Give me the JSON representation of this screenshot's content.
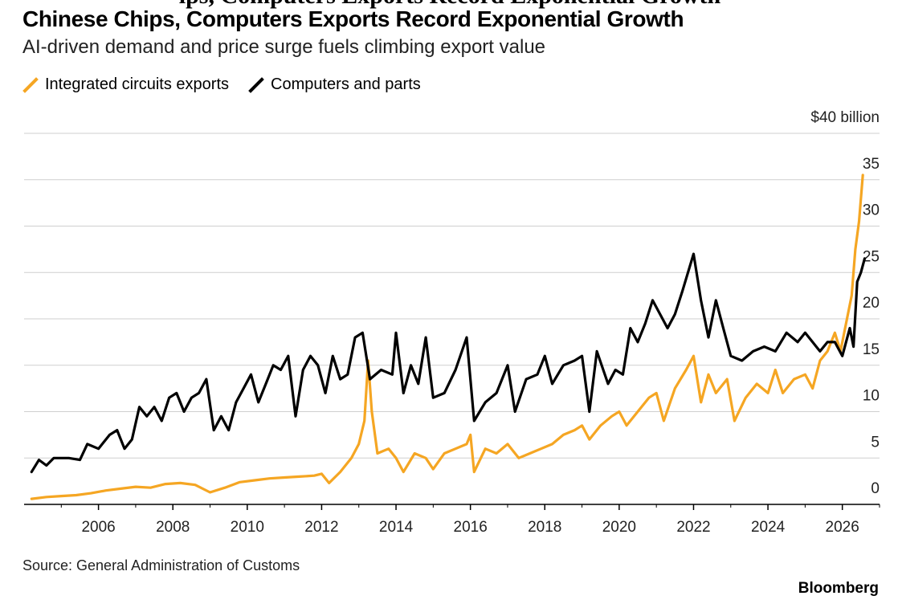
{
  "header": {
    "overlay": "ips, Computers Exports Record Exponential Growth",
    "title": "Chinese Chips, Computers Exports Record Exponential Growth",
    "subtitle": "AI-driven demand and price surge fuels climbing export value"
  },
  "footer": {
    "source": "Source: General Administration of Customs",
    "brand": "Bloomberg"
  },
  "chart_data": {
    "type": "line",
    "title": "Chinese Chips, Computers Exports Record Exponential Growth",
    "subtitle": "AI-driven demand and price surge fuels climbing export value",
    "y_unit_label": "$40 billion",
    "ylim": [
      0,
      40
    ],
    "y_ticks": [
      0,
      5,
      10,
      15,
      20,
      25,
      30,
      35,
      40
    ],
    "y_tick_labels": [
      "0",
      "5",
      "10",
      "15",
      "20",
      "25",
      "30",
      "35",
      "$40 billion"
    ],
    "xlim": [
      2004.0,
      2027.0
    ],
    "x_ticks": [
      2006,
      2008,
      2010,
      2012,
      2014,
      2016,
      2018,
      2020,
      2022,
      2024,
      2026
    ],
    "x_tick_labels": [
      "2006",
      "2008",
      "2010",
      "2012",
      "2014",
      "2016",
      "2018",
      "2020",
      "2022",
      "2024",
      "2026"
    ],
    "grid": "horizontal",
    "legend_position": "top-left",
    "series": [
      {
        "name": "Integrated circuits exports",
        "color": "#F5A623",
        "points": [
          [
            2004.2,
            0.6
          ],
          [
            2004.6,
            0.8
          ],
          [
            2005.0,
            0.9
          ],
          [
            2005.4,
            1.0
          ],
          [
            2005.8,
            1.2
          ],
          [
            2006.2,
            1.5
          ],
          [
            2006.6,
            1.7
          ],
          [
            2007.0,
            1.9
          ],
          [
            2007.4,
            1.8
          ],
          [
            2007.8,
            2.2
          ],
          [
            2008.2,
            2.3
          ],
          [
            2008.6,
            2.1
          ],
          [
            2009.0,
            1.3
          ],
          [
            2009.4,
            1.8
          ],
          [
            2009.8,
            2.4
          ],
          [
            2010.2,
            2.6
          ],
          [
            2010.6,
            2.8
          ],
          [
            2011.0,
            2.9
          ],
          [
            2011.4,
            3.0
          ],
          [
            2011.8,
            3.1
          ],
          [
            2012.0,
            3.3
          ],
          [
            2012.2,
            2.3
          ],
          [
            2012.5,
            3.5
          ],
          [
            2012.8,
            5.0
          ],
          [
            2013.0,
            6.5
          ],
          [
            2013.15,
            9.0
          ],
          [
            2013.25,
            15.5
          ],
          [
            2013.35,
            10.0
          ],
          [
            2013.5,
            5.5
          ],
          [
            2013.8,
            6.0
          ],
          [
            2014.0,
            5.0
          ],
          [
            2014.2,
            3.5
          ],
          [
            2014.5,
            5.5
          ],
          [
            2014.8,
            5.0
          ],
          [
            2015.0,
            3.8
          ],
          [
            2015.3,
            5.5
          ],
          [
            2015.6,
            6.0
          ],
          [
            2015.9,
            6.5
          ],
          [
            2016.0,
            7.5
          ],
          [
            2016.1,
            3.5
          ],
          [
            2016.4,
            6.0
          ],
          [
            2016.7,
            5.5
          ],
          [
            2017.0,
            6.5
          ],
          [
            2017.3,
            5.0
          ],
          [
            2017.6,
            5.5
          ],
          [
            2017.9,
            6.0
          ],
          [
            2018.2,
            6.5
          ],
          [
            2018.5,
            7.5
          ],
          [
            2018.8,
            8.0
          ],
          [
            2019.0,
            8.5
          ],
          [
            2019.2,
            7.0
          ],
          [
            2019.5,
            8.5
          ],
          [
            2019.8,
            9.5
          ],
          [
            2020.0,
            10.0
          ],
          [
            2020.2,
            8.5
          ],
          [
            2020.5,
            10.0
          ],
          [
            2020.8,
            11.5
          ],
          [
            2021.0,
            12.0
          ],
          [
            2021.2,
            9.0
          ],
          [
            2021.5,
            12.5
          ],
          [
            2021.8,
            14.5
          ],
          [
            2022.0,
            16.0
          ],
          [
            2022.2,
            11.0
          ],
          [
            2022.4,
            14.0
          ],
          [
            2022.6,
            12.0
          ],
          [
            2022.9,
            13.5
          ],
          [
            2023.1,
            9.0
          ],
          [
            2023.4,
            11.5
          ],
          [
            2023.7,
            13.0
          ],
          [
            2024.0,
            12.0
          ],
          [
            2024.2,
            14.5
          ],
          [
            2024.4,
            12.0
          ],
          [
            2024.7,
            13.5
          ],
          [
            2025.0,
            14.0
          ],
          [
            2025.2,
            12.5
          ],
          [
            2025.4,
            15.5
          ],
          [
            2025.6,
            16.5
          ],
          [
            2025.8,
            18.5
          ],
          [
            2025.95,
            16.5
          ],
          [
            2026.1,
            19.5
          ],
          [
            2026.25,
            22.5
          ],
          [
            2026.35,
            27.5
          ],
          [
            2026.45,
            30.5
          ],
          [
            2026.55,
            35.5
          ]
        ]
      },
      {
        "name": "Computers and parts",
        "color": "#000000",
        "points": [
          [
            2004.2,
            3.5
          ],
          [
            2004.4,
            4.8
          ],
          [
            2004.6,
            4.2
          ],
          [
            2004.8,
            5.0
          ],
          [
            2005.2,
            5.0
          ],
          [
            2005.5,
            4.8
          ],
          [
            2005.7,
            6.5
          ],
          [
            2006.0,
            6.0
          ],
          [
            2006.3,
            7.5
          ],
          [
            2006.5,
            8.0
          ],
          [
            2006.7,
            6.0
          ],
          [
            2006.9,
            7.0
          ],
          [
            2007.1,
            10.5
          ],
          [
            2007.3,
            9.5
          ],
          [
            2007.5,
            10.5
          ],
          [
            2007.7,
            9.0
          ],
          [
            2007.9,
            11.5
          ],
          [
            2008.1,
            12.0
          ],
          [
            2008.3,
            10.0
          ],
          [
            2008.5,
            11.5
          ],
          [
            2008.7,
            12.0
          ],
          [
            2008.9,
            13.5
          ],
          [
            2009.1,
            8.0
          ],
          [
            2009.3,
            9.5
          ],
          [
            2009.5,
            8.0
          ],
          [
            2009.7,
            11.0
          ],
          [
            2009.9,
            12.5
          ],
          [
            2010.1,
            14.0
          ],
          [
            2010.3,
            11.0
          ],
          [
            2010.5,
            13.0
          ],
          [
            2010.7,
            15.0
          ],
          [
            2010.9,
            14.5
          ],
          [
            2011.1,
            16.0
          ],
          [
            2011.3,
            9.5
          ],
          [
            2011.5,
            14.5
          ],
          [
            2011.7,
            16.0
          ],
          [
            2011.9,
            15.0
          ],
          [
            2012.1,
            12.0
          ],
          [
            2012.3,
            16.0
          ],
          [
            2012.5,
            13.5
          ],
          [
            2012.7,
            14.0
          ],
          [
            2012.9,
            18.0
          ],
          [
            2013.1,
            18.5
          ],
          [
            2013.3,
            13.5
          ],
          [
            2013.6,
            14.5
          ],
          [
            2013.9,
            14.0
          ],
          [
            2014.0,
            18.5
          ],
          [
            2014.2,
            12.0
          ],
          [
            2014.4,
            15.0
          ],
          [
            2014.6,
            13.0
          ],
          [
            2014.8,
            18.0
          ],
          [
            2015.0,
            11.5
          ],
          [
            2015.3,
            12.0
          ],
          [
            2015.6,
            14.5
          ],
          [
            2015.9,
            18.0
          ],
          [
            2016.1,
            9.0
          ],
          [
            2016.4,
            11.0
          ],
          [
            2016.7,
            12.0
          ],
          [
            2017.0,
            15.0
          ],
          [
            2017.2,
            10.0
          ],
          [
            2017.5,
            13.5
          ],
          [
            2017.8,
            14.0
          ],
          [
            2018.0,
            16.0
          ],
          [
            2018.2,
            13.0
          ],
          [
            2018.5,
            15.0
          ],
          [
            2018.8,
            15.5
          ],
          [
            2019.0,
            16.0
          ],
          [
            2019.2,
            10.0
          ],
          [
            2019.4,
            16.5
          ],
          [
            2019.7,
            13.0
          ],
          [
            2019.9,
            14.5
          ],
          [
            2020.1,
            14.0
          ],
          [
            2020.3,
            19.0
          ],
          [
            2020.5,
            17.5
          ],
          [
            2020.7,
            19.5
          ],
          [
            2020.9,
            22.0
          ],
          [
            2021.1,
            20.5
          ],
          [
            2021.3,
            19.0
          ],
          [
            2021.5,
            20.5
          ],
          [
            2021.7,
            23.0
          ],
          [
            2022.0,
            27.0
          ],
          [
            2022.2,
            22.0
          ],
          [
            2022.4,
            18.0
          ],
          [
            2022.6,
            22.0
          ],
          [
            2022.8,
            19.0
          ],
          [
            2023.0,
            16.0
          ],
          [
            2023.3,
            15.5
          ],
          [
            2023.6,
            16.5
          ],
          [
            2023.9,
            17.0
          ],
          [
            2024.2,
            16.5
          ],
          [
            2024.5,
            18.5
          ],
          [
            2024.8,
            17.5
          ],
          [
            2025.0,
            18.5
          ],
          [
            2025.2,
            17.5
          ],
          [
            2025.4,
            16.5
          ],
          [
            2025.6,
            17.5
          ],
          [
            2025.8,
            17.5
          ],
          [
            2026.0,
            16.0
          ],
          [
            2026.2,
            19.0
          ],
          [
            2026.3,
            17.0
          ],
          [
            2026.4,
            24.0
          ],
          [
            2026.5,
            25.0
          ],
          [
            2026.6,
            26.5
          ]
        ]
      }
    ]
  }
}
